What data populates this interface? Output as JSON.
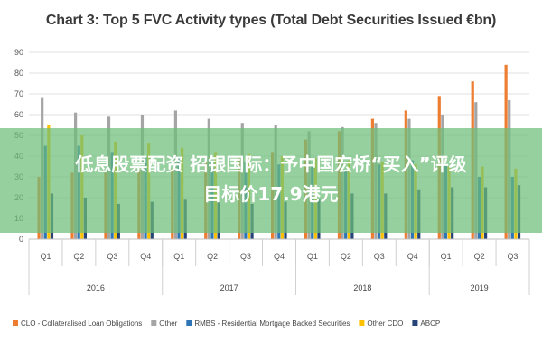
{
  "chart_data": {
    "type": "bar",
    "title": "Chart 3: Top 5 FVC Activity types (Total Debt Securities Issued €bn)",
    "xlabel": "",
    "ylabel": "",
    "ylim": [
      0,
      90
    ],
    "yticks": [
      0,
      10,
      20,
      30,
      40,
      50,
      60,
      70,
      80,
      90
    ],
    "grid": true,
    "legend_position": "bottom",
    "categories": [
      "Q1",
      "Q2",
      "Q3",
      "Q4",
      "Q1",
      "Q2",
      "Q3",
      "Q4",
      "Q1",
      "Q2",
      "Q3",
      "Q4",
      "Q1",
      "Q2",
      "Q3"
    ],
    "year_groups": [
      {
        "label": "2016",
        "count": 4
      },
      {
        "label": "2017",
        "count": 4
      },
      {
        "label": "2018",
        "count": 4
      },
      {
        "label": "2019",
        "count": 3
      }
    ],
    "series": [
      {
        "name": "CLO - Collateralised Loan Obligations",
        "color": "#ed7d31",
        "values": [
          30,
          32,
          32,
          34,
          34,
          37,
          40,
          42,
          48,
          52,
          58,
          62,
          69,
          76,
          84
        ]
      },
      {
        "name": "Other",
        "color": "#a5a5a5",
        "values": [
          68,
          61,
          59,
          60,
          62,
          58,
          56,
          55,
          52,
          54,
          56,
          58,
          60,
          66,
          67
        ]
      },
      {
        "name": "RMBS - Residential Mortgage Backed Securities",
        "color": "#2e75b6",
        "values": [
          45,
          45,
          42,
          40,
          39,
          38,
          37,
          36,
          35,
          33,
          36,
          38,
          36,
          30,
          30
        ]
      },
      {
        "name": "Other CDO",
        "color": "#ffc000",
        "values": [
          55,
          50,
          47,
          46,
          44,
          42,
          41,
          40,
          39,
          38,
          37,
          36,
          35,
          35,
          34
        ]
      },
      {
        "name": "ABCP",
        "color": "#264478",
        "values": [
          22,
          20,
          17,
          18,
          19,
          18,
          17,
          18,
          19,
          22,
          22,
          24,
          25,
          25,
          26
        ]
      }
    ]
  },
  "overlay": {
    "line1": "低息股票配资 招银国际：予中国宏桥“买入”评级",
    "line2": "目标价17.9港元"
  }
}
